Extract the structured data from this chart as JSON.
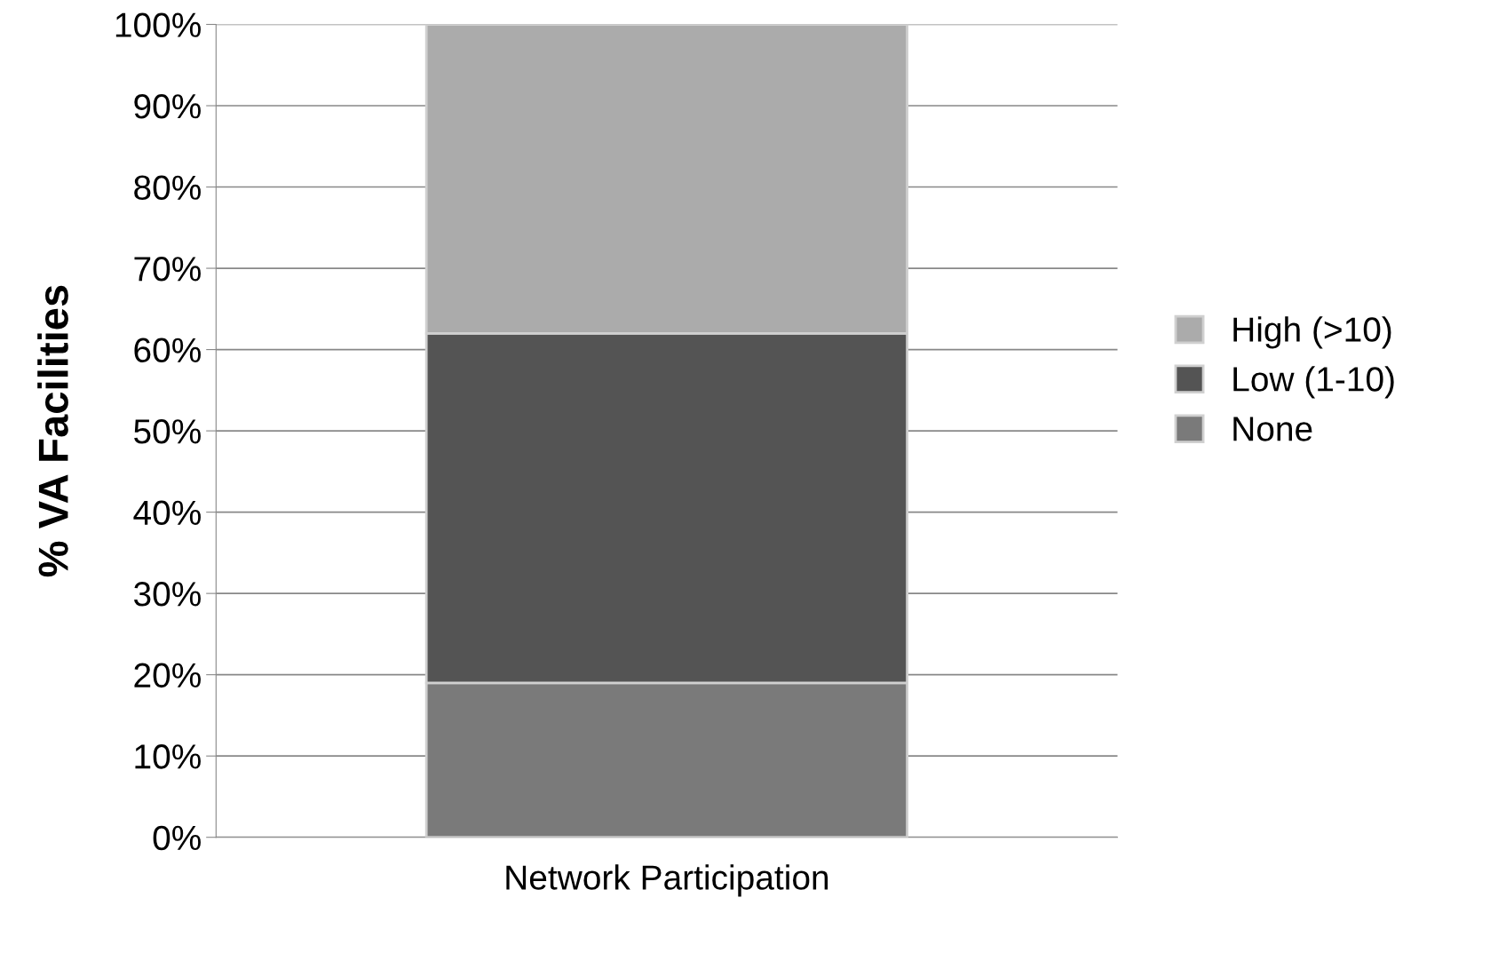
{
  "chart_data": {
    "type": "bar",
    "stacked": true,
    "ylabel": "% VA Facilities",
    "categories": [
      "Network Participation"
    ],
    "series": [
      {
        "name": "None",
        "color": "#7a7a7a",
        "values": [
          19
        ]
      },
      {
        "name": "Low (1-10)",
        "color": "#545454",
        "values": [
          43
        ]
      },
      {
        "name": "High (>10)",
        "color": "#ababab",
        "values": [
          38
        ]
      }
    ],
    "ylim": [
      0,
      100
    ],
    "yticks": [
      {
        "value": 0,
        "label": "0%"
      },
      {
        "value": 10,
        "label": "10%"
      },
      {
        "value": 20,
        "label": "20%"
      },
      {
        "value": 30,
        "label": "30%"
      },
      {
        "value": 40,
        "label": "40%"
      },
      {
        "value": 50,
        "label": "50%"
      },
      {
        "value": 60,
        "label": "60%"
      },
      {
        "value": 70,
        "label": "70%"
      },
      {
        "value": 80,
        "label": "80%"
      },
      {
        "value": 90,
        "label": "90%"
      },
      {
        "value": 100,
        "label": "100%"
      }
    ],
    "grid": "y",
    "legend": "right"
  }
}
